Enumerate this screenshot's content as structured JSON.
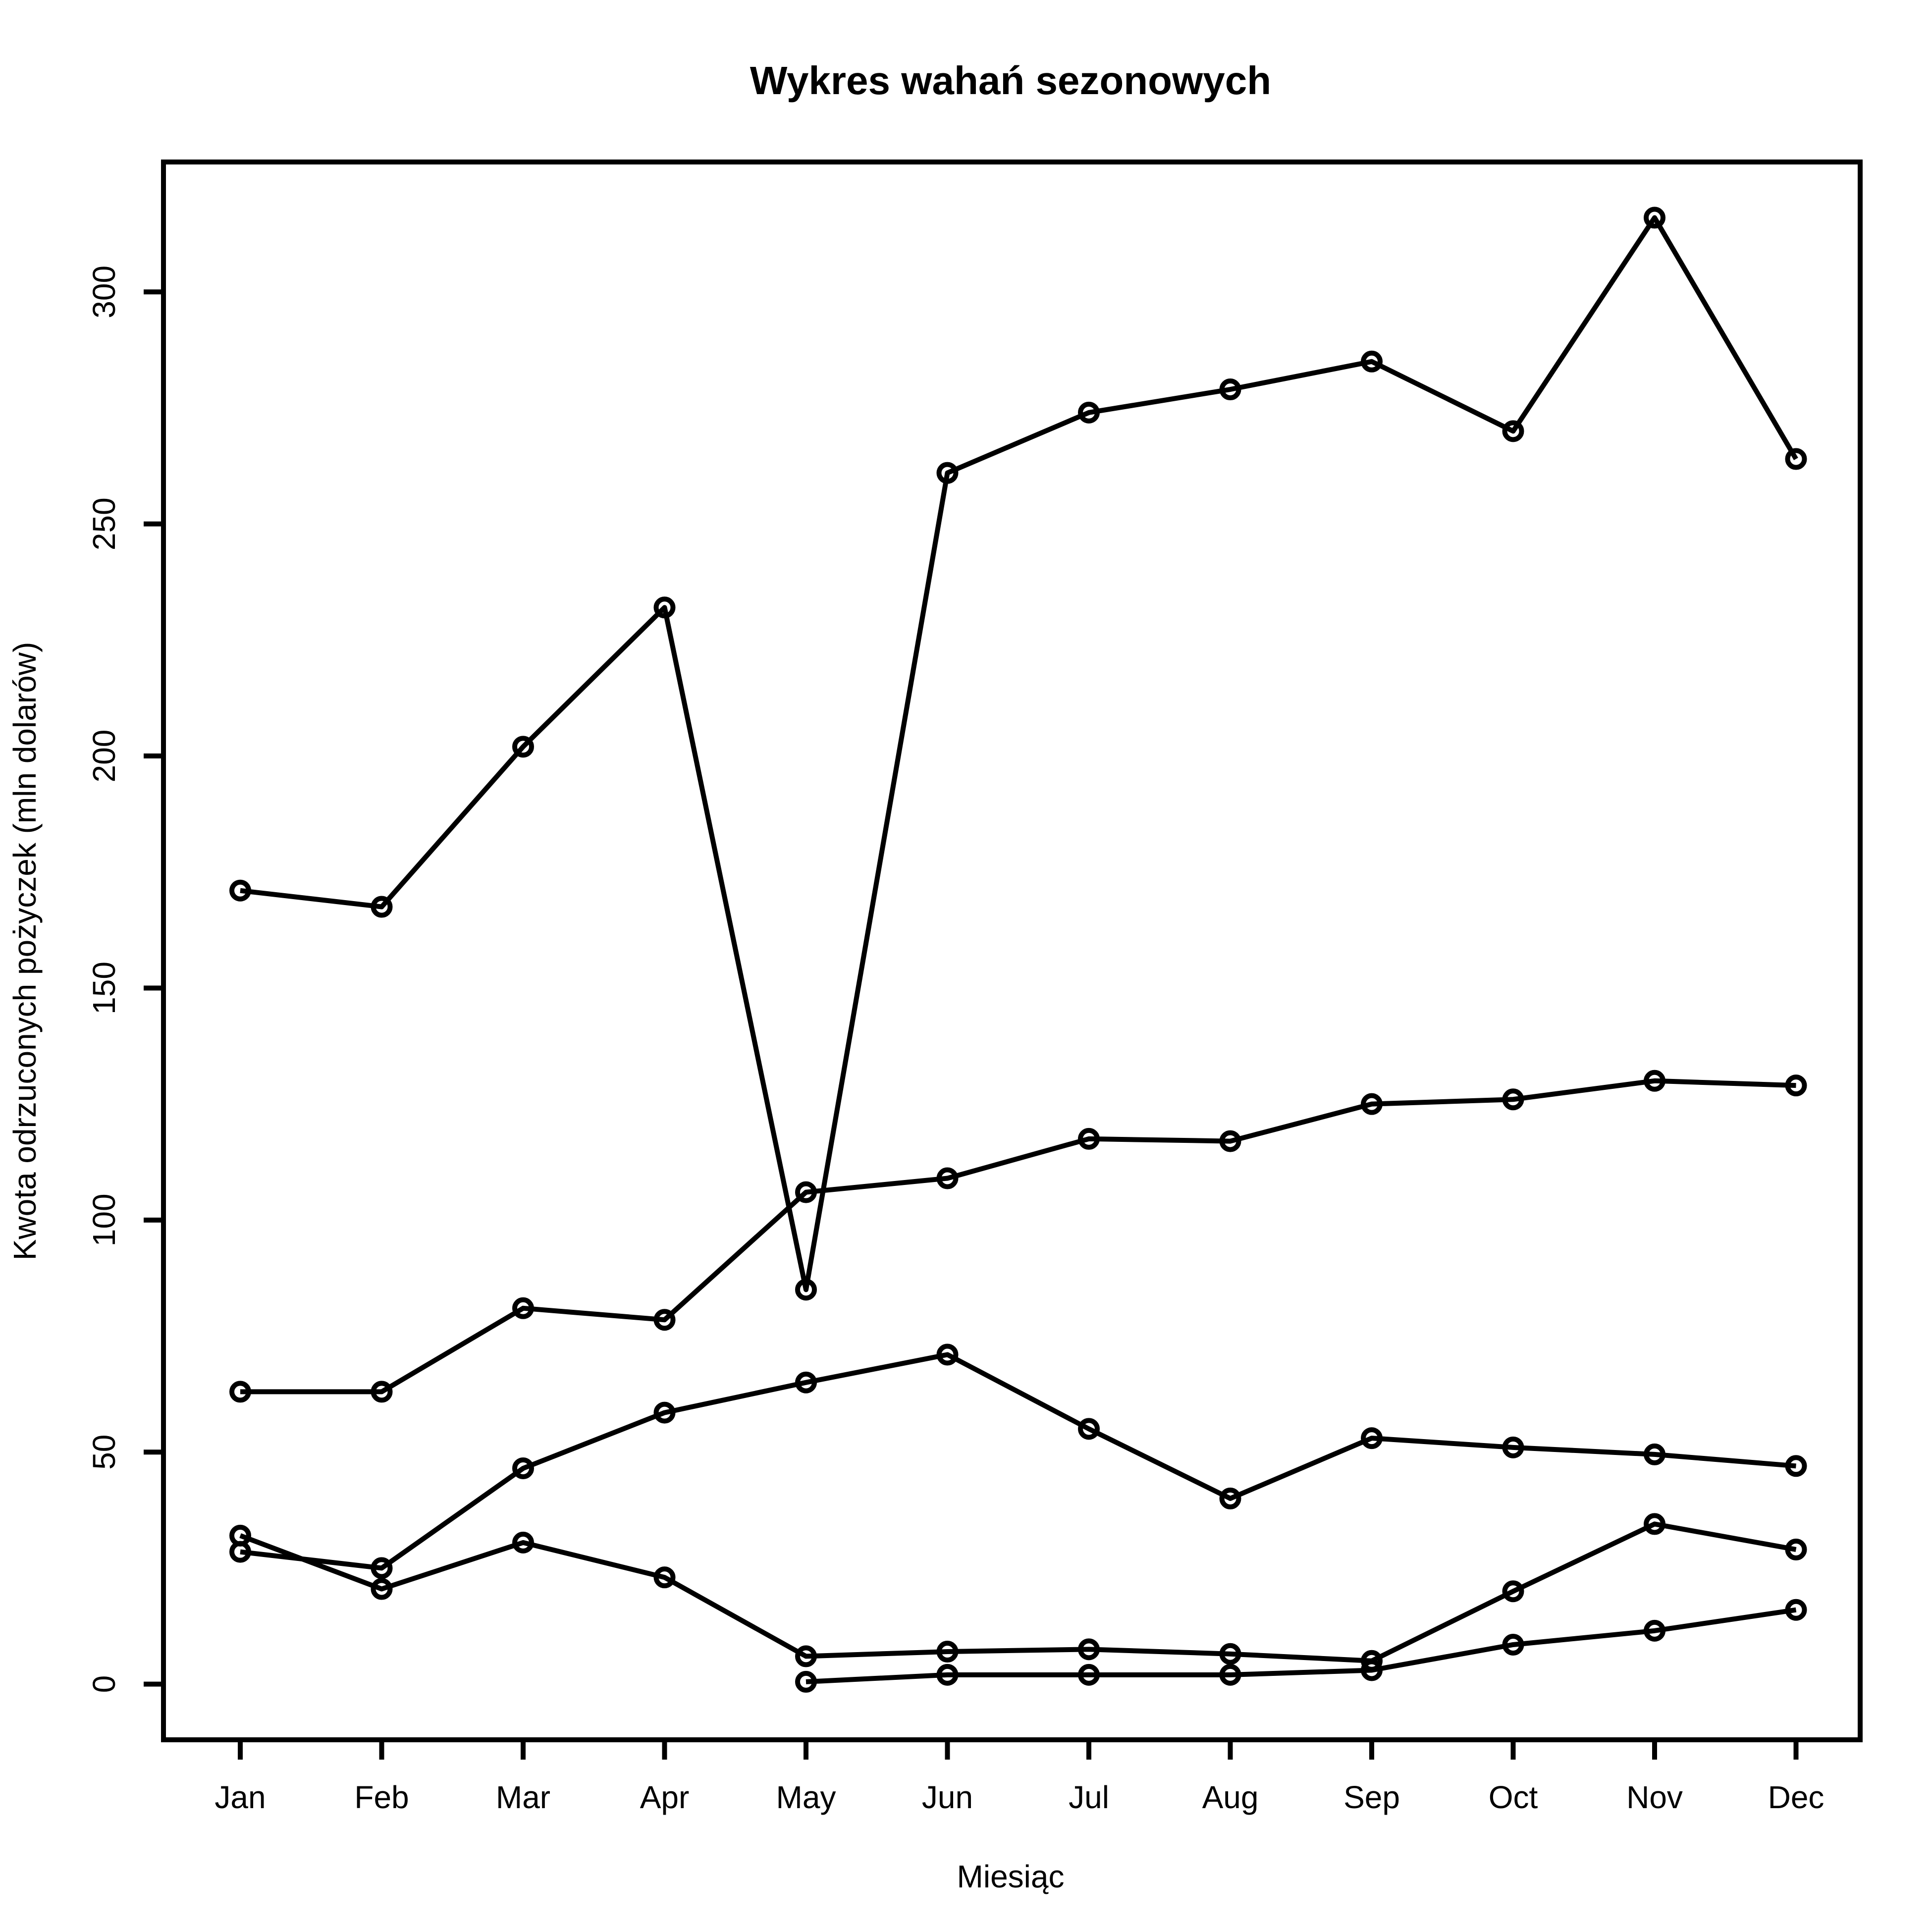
{
  "chart_data": {
    "type": "line",
    "title": "Wykres wahań sezonowych",
    "xlabel": "Miesiąc",
    "ylabel": "Kwota odrzuconych pożyczek (mln dolarów)",
    "categories": [
      "Jan",
      "Feb",
      "Mar",
      "Apr",
      "May",
      "Jun",
      "Jul",
      "Aug",
      "Sep",
      "Oct",
      "Nov",
      "Dec"
    ],
    "ylim": [
      -12,
      328
    ],
    "yticks": [
      0,
      50,
      100,
      150,
      200,
      250,
      300
    ],
    "grid": false,
    "legend": "none",
    "series": [
      {
        "values": [
          171,
          167.5,
          202,
          232,
          85,
          261,
          274,
          279,
          285,
          270,
          316,
          264
        ]
      },
      {
        "values": [
          63,
          63,
          81,
          78.5,
          106,
          109,
          117.5,
          117,
          125,
          126,
          130,
          129
        ]
      },
      {
        "values": [
          28.5,
          25,
          46.5,
          58.5,
          65,
          71,
          55,
          40,
          53,
          51,
          49.5,
          47
        ]
      },
      {
        "values": [
          32,
          20.5,
          30.5,
          23,
          6,
          7,
          7.5,
          6.5,
          5,
          20,
          34.5,
          29
        ]
      },
      {
        "values": [
          null,
          null,
          null,
          null,
          0.5,
          2,
          2,
          2,
          3,
          8.5,
          11.5,
          16
        ]
      }
    ]
  }
}
